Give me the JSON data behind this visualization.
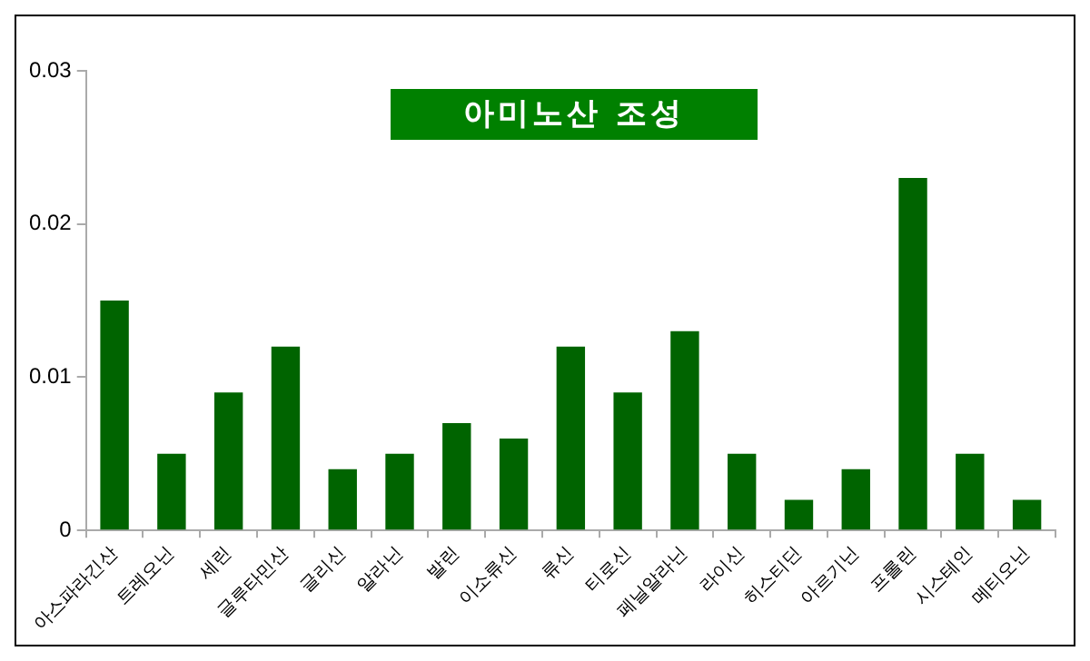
{
  "chart_data": {
    "type": "bar",
    "title": "아미노산 조성",
    "categories": [
      "아스파라긴산",
      "트레오닌",
      "세린",
      "글루타민산",
      "글리신",
      "알라닌",
      "발린",
      "이소류신",
      "류신",
      "티로신",
      "페닐알라닌",
      "라이신",
      "히스티딘",
      "아르기닌",
      "프롤린",
      "시스테인",
      "메티오닌"
    ],
    "values": [
      0.015,
      0.005,
      0.009,
      0.012,
      0.004,
      0.005,
      0.007,
      0.006,
      0.012,
      0.009,
      0.013,
      0.005,
      0.002,
      0.004,
      0.023,
      0.005,
      0.002
    ],
    "color": "#006400",
    "ylim": [
      0,
      0.03
    ],
    "yticks": [
      0,
      0.01,
      0.02,
      0.03
    ],
    "grid": false,
    "legend": false
  }
}
